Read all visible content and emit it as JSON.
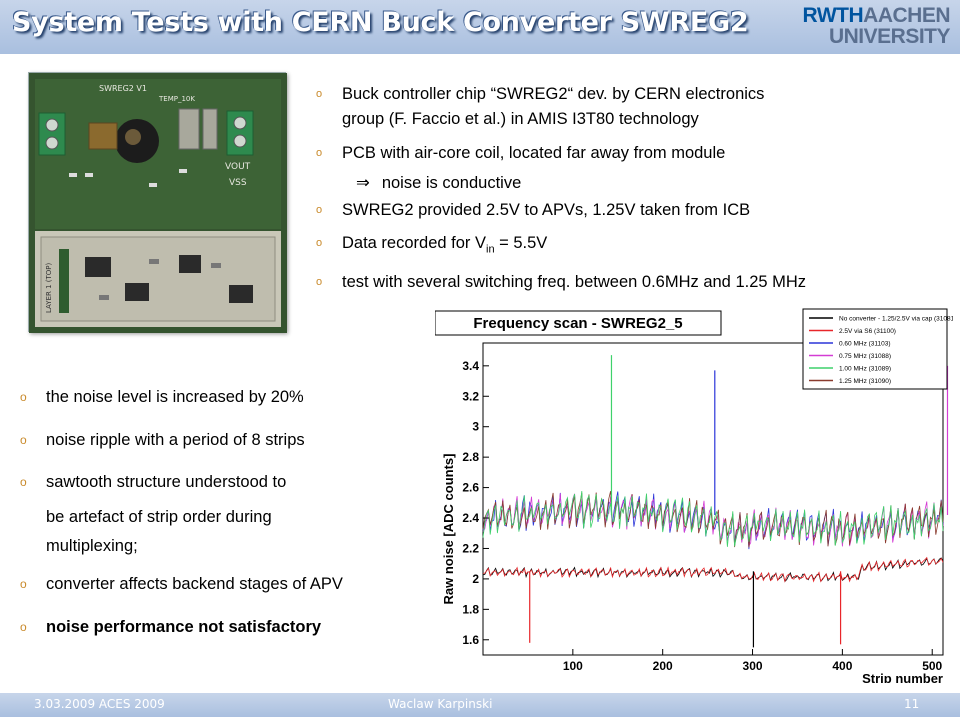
{
  "slide": {
    "title": "System Tests with CERN Buck Converter SWREG2",
    "logo_line1_a": "RWTH",
    "logo_line1_b": "AACHEN",
    "logo_line2": "UNIVERSITY"
  },
  "top_bullets": {
    "b1_l1": "Buck controller chip “SWREG2“  dev. by CERN electronics",
    "b1_l2": "group (F. Faccio et al.)   in AMIS I3T80 technology",
    "b2": "PCB with air-core coil,  located far away from module",
    "b2_sub": "noise is conductive",
    "b3": "SWREG2 provided 2.5V to APVs, 1.25V taken from ICB",
    "b4_pre": "Data recorded for V",
    "b4_sub": "in",
    "b4_post": " = 5.5V",
    "b5": "test with several switching freq. between 0.6MHz and 1.25 MHz"
  },
  "left_bullets": {
    "b1": "the noise level is increased by 20%",
    "b2": "noise ripple with a period of 8 strips",
    "b3_l1": "sawtooth structure understood to",
    "b3_l2": "be artefact of strip order during",
    "b3_l3": "multiplexing;",
    "b4": "converter affects backend stages of APV",
    "b5": "noise performance not satisfactory"
  },
  "pcb_labels": {
    "l1": "SWREG2 V1",
    "l2": "TEMP_10K",
    "l3": "VOUT",
    "l4": "VSS",
    "l5": "LAYER 1 (TOP)"
  },
  "footer": {
    "date_event": "3.03.2009 ACES 2009",
    "author": "Waclaw Karpinski",
    "page": "11"
  },
  "colors": {
    "header_bg": "#b3c7e4",
    "bullet_mark": "#c98a2b",
    "series_black": "#000000",
    "series_red": "#e8262a",
    "series_blue": "#2b35d8",
    "series_magenta": "#d43cd4",
    "series_green": "#3fd16b",
    "series_brown": "#8a3b2e"
  },
  "chart_data": {
    "type": "line",
    "title": "Frequency scan - SWREG2_5",
    "xlabel": "Strip number",
    "ylabel": "Raw noise [ADC counts]",
    "xlim": [
      0,
      512
    ],
    "ylim": [
      1.5,
      3.55
    ],
    "xticks": [
      100,
      200,
      300,
      400,
      500
    ],
    "yticks": [
      1.6,
      1.8,
      2,
      2.2,
      2.4,
      2.6,
      2.8,
      3,
      3.2,
      3.4
    ],
    "legend_position": "top-right",
    "series": [
      {
        "name": "No converter - 1.25/2.5V via cap (31081)",
        "color": "#000000",
        "baseline": 2.05,
        "ripple": 0.05
      },
      {
        "name": "2.5V via S6 (31100)",
        "color": "#e8262a",
        "baseline": 2.05,
        "ripple": 0.05
      },
      {
        "name": "0.60 MHz (31103)",
        "color": "#2b35d8",
        "baseline": 2.42,
        "ripple": 0.2
      },
      {
        "name": "0.75 MHz (31088)",
        "color": "#d43cd4",
        "baseline": 2.42,
        "ripple": 0.2
      },
      {
        "name": "1.00 MHz (31089)",
        "color": "#3fd16b",
        "baseline": 2.42,
        "ripple": 0.2
      },
      {
        "name": "1.25 MHz (31090)",
        "color": "#8a3b2e",
        "baseline": 2.42,
        "ripple": 0.2
      }
    ],
    "spikes": [
      {
        "x": 143,
        "y": 3.47,
        "series": "1.00 MHz (31089)"
      },
      {
        "x": 258,
        "y": 3.37,
        "series": "0.60 MHz (31103)"
      },
      {
        "x": 517,
        "y": 3.4,
        "series": "0.75 MHz (31088)"
      },
      {
        "x": 52,
        "y": 1.58,
        "series": "2.5V via S6 (31100)"
      },
      {
        "x": 301,
        "y": 1.55,
        "series": "No converter - 1.25/2.5V via cap (31081)"
      },
      {
        "x": 398,
        "y": 1.57,
        "series": "2.5V via S6 (31100)"
      }
    ]
  }
}
